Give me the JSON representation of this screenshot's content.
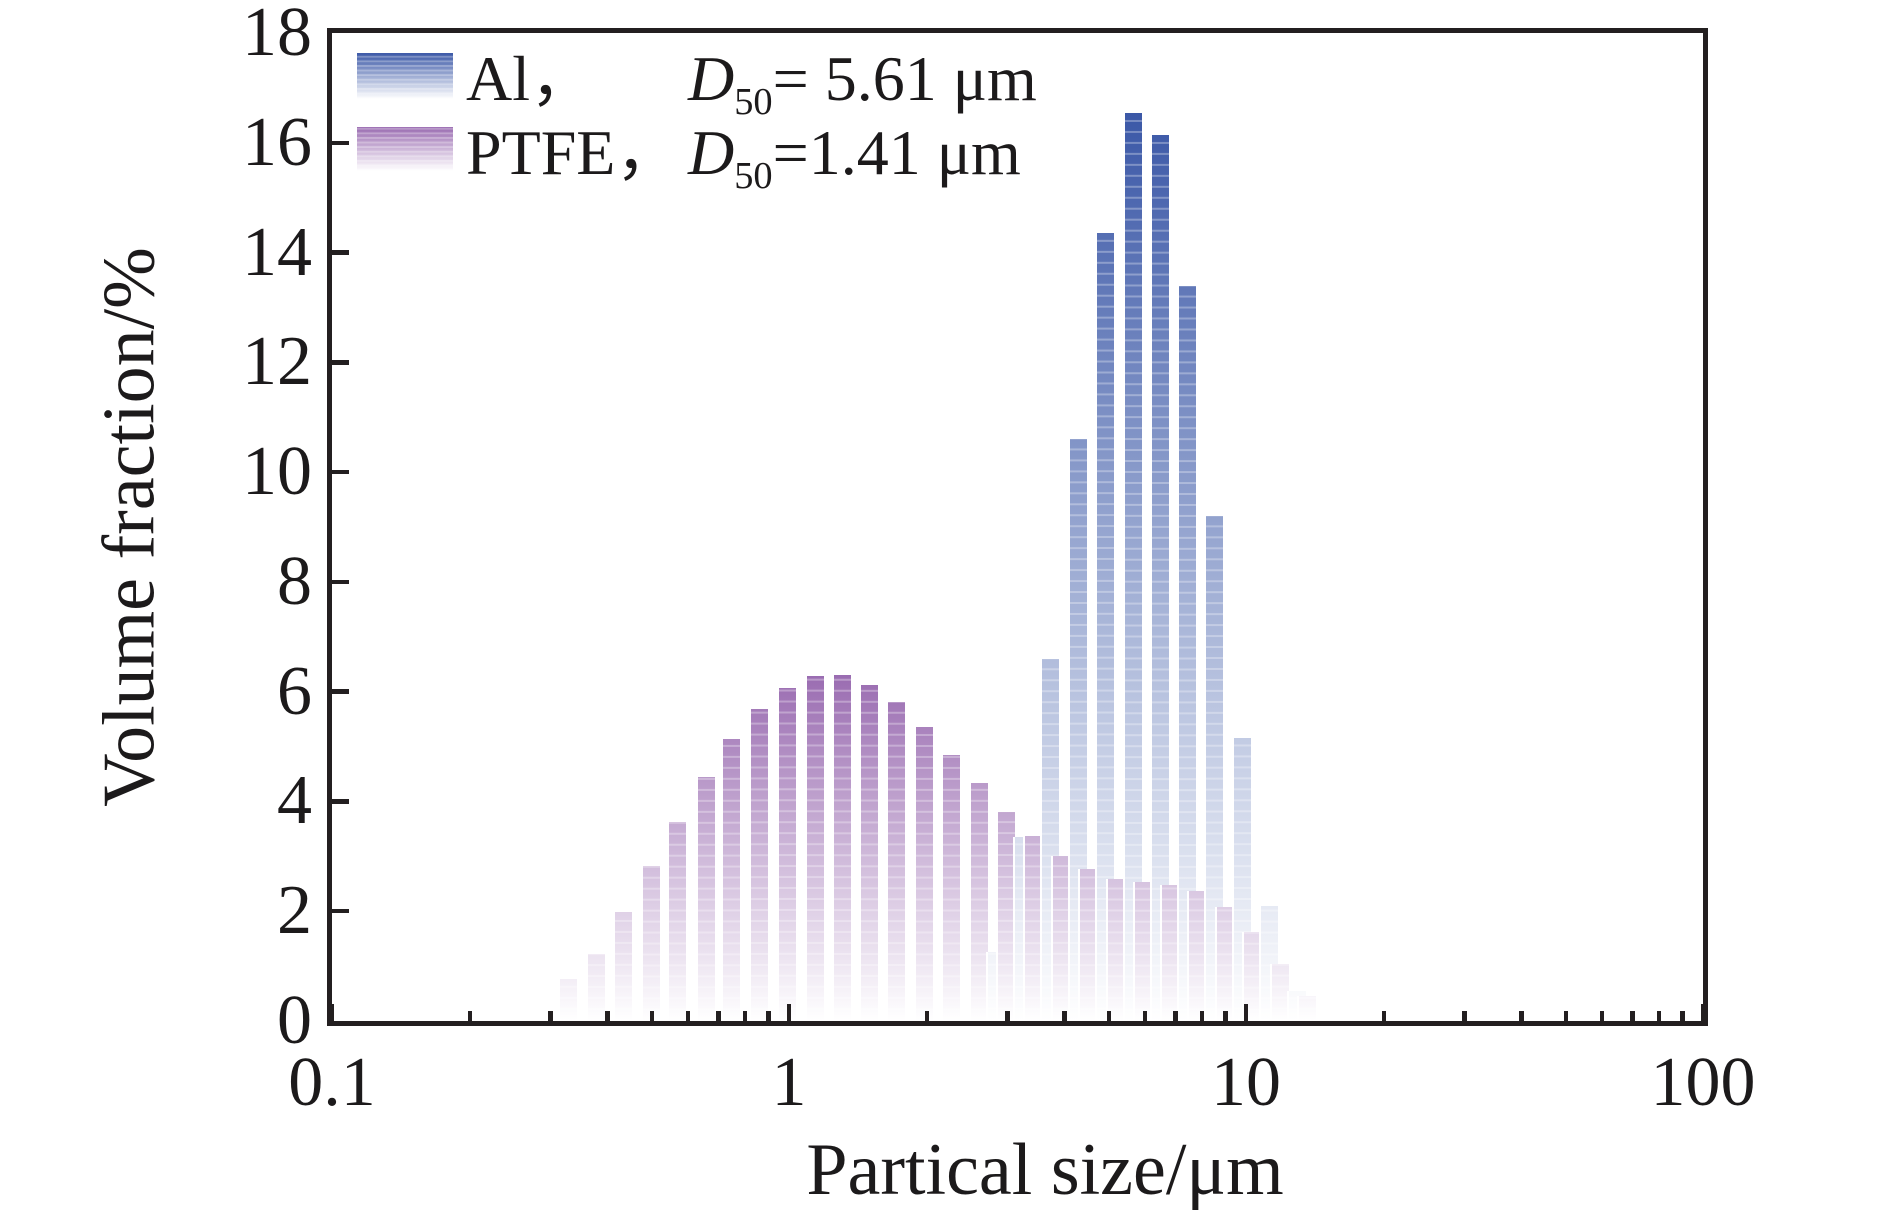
{
  "chart_data": {
    "type": "bar",
    "title": "",
    "xlabel": "Partical size/μm",
    "ylabel": "Volume fraction/%",
    "x_scale": "log",
    "xlim": [
      0.1,
      100
    ],
    "ylim": [
      0,
      18
    ],
    "x_ticks": [
      0.1,
      1,
      10,
      100
    ],
    "x_tick_labels": [
      "0.1",
      "1",
      "10",
      "100"
    ],
    "x_minor_tick_decades": [
      0.1,
      1,
      10
    ],
    "y_ticks": [
      0,
      2,
      4,
      6,
      8,
      10,
      12,
      14,
      16,
      18
    ],
    "grid": false,
    "legend_position": "top-left",
    "bar_color_fade_to": "#ffffff",
    "axis_color": "#231f20",
    "series": [
      {
        "name": "Al",
        "color_dark": "#3b58a7",
        "d50_um": 5.61,
        "legend": {
          "label": "Al，",
          "d": "D",
          "sub": "50",
          "value": "= 5.61 μm"
        },
        "points": [
          [
            2.84,
            1.25
          ],
          [
            3.26,
            3.35
          ],
          [
            3.74,
            6.6
          ],
          [
            4.29,
            10.6
          ],
          [
            4.93,
            14.35
          ],
          [
            5.66,
            16.55
          ],
          [
            6.49,
            16.15
          ],
          [
            7.45,
            13.4
          ],
          [
            8.55,
            9.2
          ],
          [
            9.82,
            5.15
          ],
          [
            11.27,
            2.1
          ],
          [
            12.93,
            0.55
          ]
        ]
      },
      {
        "name": "PTFE",
        "color_dark": "#9a6cb1",
        "d50_um": 1.41,
        "legend": {
          "label": "PTFE，",
          "d": "D",
          "sub": "50",
          "value": "=1.41 μm"
        },
        "points": [
          [
            0.33,
            0.76
          ],
          [
            0.38,
            1.22
          ],
          [
            0.435,
            1.98
          ],
          [
            0.5,
            2.83
          ],
          [
            0.57,
            3.63
          ],
          [
            0.66,
            4.45
          ],
          [
            0.75,
            5.14
          ],
          [
            0.86,
            5.68
          ],
          [
            0.99,
            6.06
          ],
          [
            1.14,
            6.28
          ],
          [
            1.31,
            6.3
          ],
          [
            1.5,
            6.12
          ],
          [
            1.72,
            5.81
          ],
          [
            1.98,
            5.36
          ],
          [
            2.27,
            4.85
          ],
          [
            2.61,
            4.34
          ],
          [
            2.99,
            3.8
          ],
          [
            3.43,
            3.37
          ],
          [
            3.94,
            3.0
          ],
          [
            4.53,
            2.77
          ],
          [
            5.2,
            2.59
          ],
          [
            5.96,
            2.54
          ],
          [
            6.84,
            2.48
          ],
          [
            7.85,
            2.37
          ],
          [
            9.01,
            2.08
          ],
          [
            10.35,
            1.63
          ],
          [
            11.88,
            1.03
          ],
          [
            13.63,
            0.45
          ]
        ]
      }
    ]
  }
}
